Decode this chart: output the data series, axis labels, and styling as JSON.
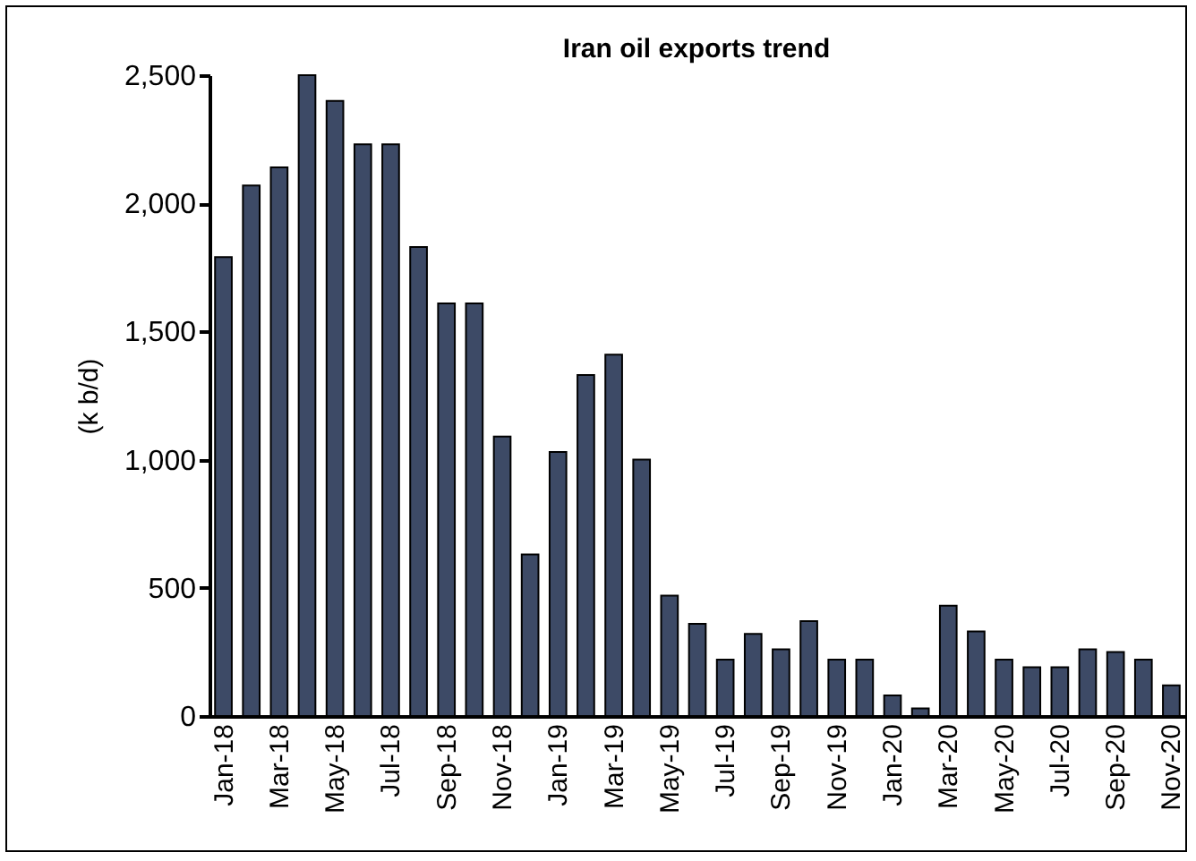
{
  "chart_data": {
    "type": "bar",
    "title": "Iran oil exports trend",
    "ylabel": "(k b/d)",
    "categories": [
      "Jan-18",
      null,
      "Mar-18",
      null,
      "May-18",
      null,
      "Jul-18",
      null,
      "Sep-18",
      null,
      "Nov-18",
      null,
      "Jan-19",
      null,
      "Mar-19",
      null,
      "May-19",
      null,
      "Jul-19",
      null,
      "Sep-19",
      null,
      "Nov-19",
      null,
      "Jan-20",
      null,
      "Mar-20",
      null,
      "May-20",
      null,
      "Jul-20",
      null,
      "Sep-20",
      null,
      "Nov-20"
    ],
    "values": [
      1790,
      2070,
      2140,
      2500,
      2400,
      2230,
      2230,
      1830,
      1610,
      1610,
      1090,
      630,
      1030,
      1330,
      1410,
      1000,
      470,
      360,
      220,
      320,
      260,
      370,
      220,
      220,
      80,
      30,
      430,
      330,
      220,
      190,
      190,
      260,
      250,
      220,
      120
    ],
    "color": "#3d4a66",
    "ylim": [
      0,
      2500
    ],
    "yticks": [
      0,
      500,
      {
        "value": 1000,
        "label": "1,000"
      },
      {
        "value": 1500,
        "label": "1,500"
      },
      {
        "value": 2000,
        "label": "2,000"
      },
      {
        "value": 2500,
        "label": "2,500"
      }
    ],
    "grid": false
  }
}
